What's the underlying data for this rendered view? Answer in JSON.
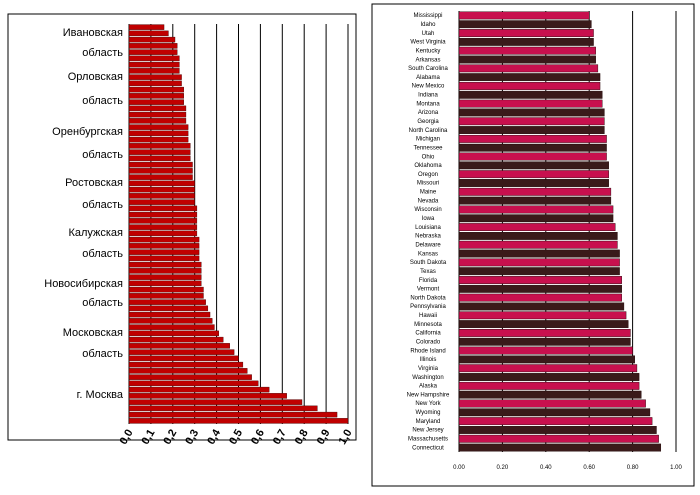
{
  "chart_data": [
    {
      "type": "bar",
      "orientation": "horizontal",
      "xlim": [
        0,
        1.0
      ],
      "xticks": [
        "0,0",
        "0,1",
        "0,2",
        "0,3",
        "0,4",
        "0,5",
        "0,6",
        "0,7",
        "0,8",
        "0,9",
        "1,0"
      ],
      "grid": true,
      "bar_color": "#c00000",
      "region_labels": [
        [
          "Ивановская",
          "область"
        ],
        [
          "Орловская",
          "область"
        ],
        [
          "Оренбургская",
          "область"
        ],
        [
          "Ростовская",
          "область"
        ],
        [
          "Калужская",
          "область"
        ],
        [
          "Новосибирская",
          "область"
        ],
        [
          "Московская",
          "область"
        ],
        [
          "г. Москва"
        ]
      ],
      "values": [
        0.16,
        0.18,
        0.21,
        0.22,
        0.22,
        0.23,
        0.23,
        0.23,
        0.24,
        0.24,
        0.25,
        0.25,
        0.25,
        0.26,
        0.26,
        0.26,
        0.27,
        0.27,
        0.27,
        0.28,
        0.28,
        0.28,
        0.29,
        0.29,
        0.29,
        0.3,
        0.3,
        0.3,
        0.3,
        0.31,
        0.31,
        0.31,
        0.31,
        0.31,
        0.32,
        0.32,
        0.32,
        0.32,
        0.33,
        0.33,
        0.33,
        0.33,
        0.34,
        0.34,
        0.35,
        0.36,
        0.37,
        0.38,
        0.39,
        0.41,
        0.43,
        0.46,
        0.48,
        0.5,
        0.52,
        0.54,
        0.56,
        0.59,
        0.64,
        0.72,
        0.79,
        0.86,
        0.95,
        1.0
      ]
    },
    {
      "type": "bar",
      "orientation": "horizontal",
      "xlim": [
        0,
        1.0
      ],
      "xticks": [
        "0.00",
        "0.20",
        "0.40",
        "0.60",
        "0.80",
        "1.00"
      ],
      "grid": true,
      "series_colors": [
        "#c8104e",
        "#3a1a1a"
      ],
      "categories": [
        "Mississippi",
        "Idaho",
        "Utah",
        "West Virginia",
        "Kentucky",
        "Arkansas",
        "South Carolina",
        "Alabama",
        "New Mexico",
        "Indiana",
        "Montana",
        "Arizona",
        "Georgia",
        "North Carolina",
        "Michigan",
        "Tennessee",
        "Ohio",
        "Oklahoma",
        "Oregon",
        "Missouri",
        "Maine",
        "Nevada",
        "Wisconsin",
        "Iowa",
        "Louisiana",
        "Nebraska",
        "Delaware",
        "Kansas",
        "South Dakota",
        "Texas",
        "Florida",
        "Vermont",
        "North Dakota",
        "Pennsylvania",
        "Hawaii",
        "Minnesota",
        "California",
        "Colorado",
        "Rhode Island",
        "Illinois",
        "Virginia",
        "Washington",
        "Alaska",
        "New Hampshire",
        "New York",
        "Wyoming",
        "Maryland",
        "New Jersey",
        "Massachusetts",
        "Connecticut"
      ],
      "values": [
        0.6,
        0.61,
        0.62,
        0.62,
        0.63,
        0.63,
        0.64,
        0.65,
        0.65,
        0.66,
        0.66,
        0.67,
        0.67,
        0.67,
        0.68,
        0.68,
        0.68,
        0.69,
        0.69,
        0.69,
        0.7,
        0.7,
        0.71,
        0.71,
        0.72,
        0.73,
        0.73,
        0.74,
        0.74,
        0.74,
        0.75,
        0.75,
        0.75,
        0.76,
        0.77,
        0.78,
        0.79,
        0.79,
        0.8,
        0.81,
        0.82,
        0.83,
        0.83,
        0.84,
        0.86,
        0.88,
        0.89,
        0.91,
        0.92,
        0.93
      ]
    }
  ]
}
